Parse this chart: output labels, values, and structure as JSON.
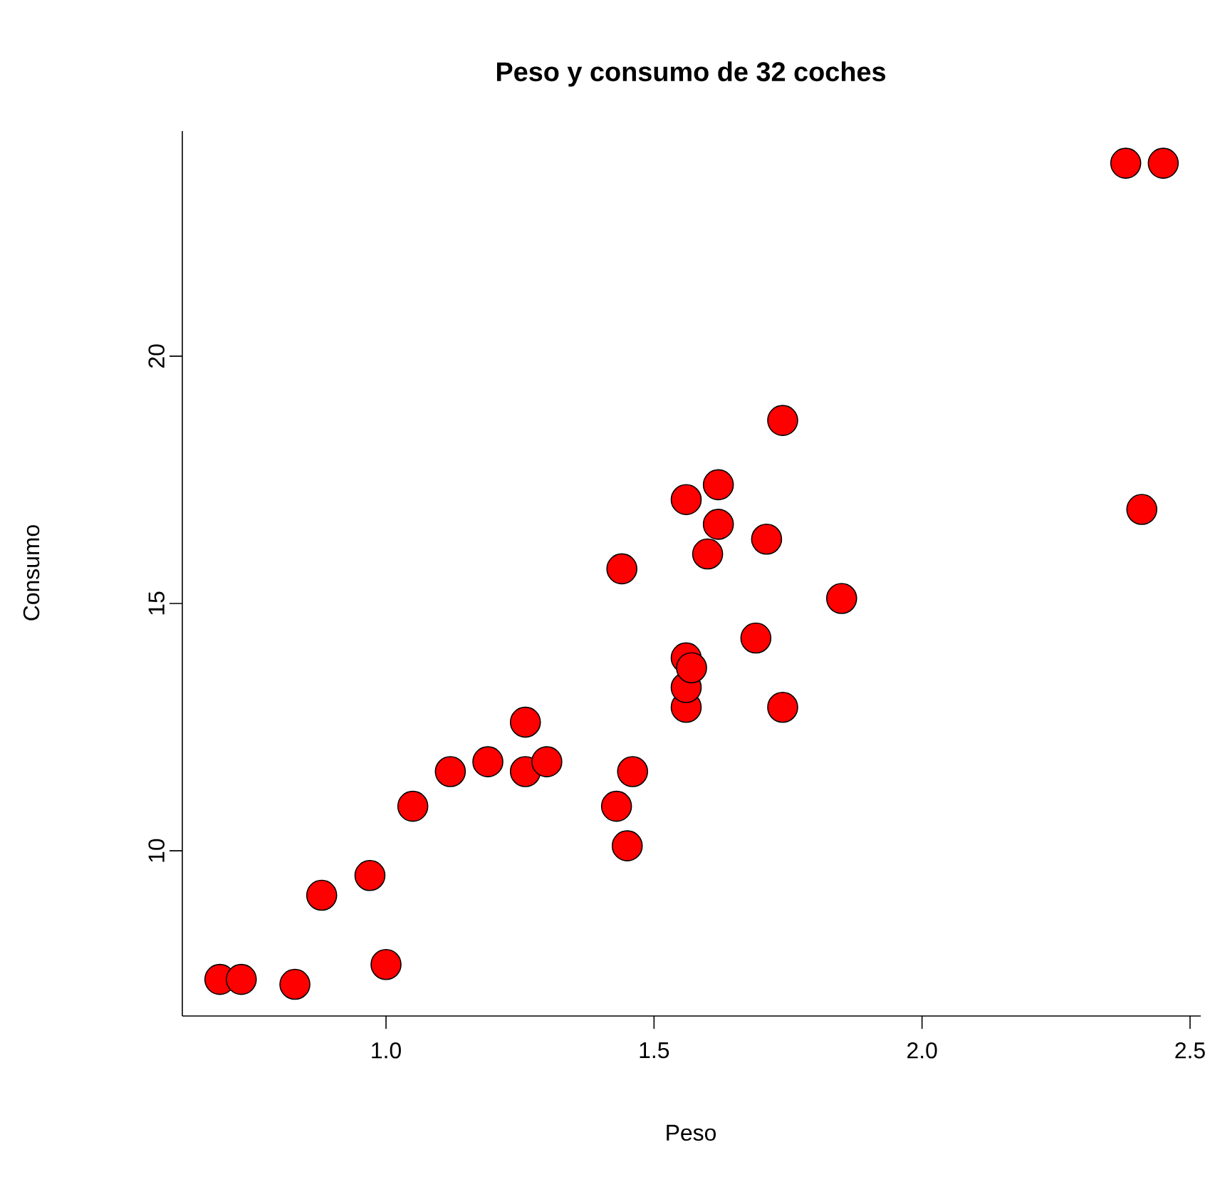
{
  "chart_data": {
    "type": "scatter",
    "title": "Peso y consumo de 32 coches",
    "xlabel": "Peso",
    "ylabel": "Consumo",
    "x": [
      0.69,
      0.73,
      0.83,
      0.88,
      0.97,
      1.0,
      1.05,
      1.12,
      1.19,
      1.26,
      1.26,
      1.3,
      1.43,
      1.45,
      1.46,
      1.44,
      1.56,
      1.56,
      1.56,
      1.57,
      1.62,
      1.62,
      1.6,
      1.56,
      1.71,
      1.69,
      1.74,
      1.74,
      1.85,
      2.38,
      2.45,
      2.41
    ],
    "values": [
      7.4,
      7.4,
      7.3,
      9.1,
      9.5,
      7.7,
      10.9,
      11.6,
      11.8,
      12.6,
      11.6,
      11.8,
      10.9,
      10.1,
      11.6,
      15.7,
      12.9,
      13.3,
      13.9,
      13.7,
      17.4,
      16.6,
      16.0,
      17.1,
      16.3,
      14.3,
      12.9,
      18.7,
      15.1,
      23.9,
      23.9,
      16.9
    ],
    "color": "#ff0000",
    "xlim": [
      0.62,
      2.52
    ],
    "ylim": [
      6.66,
      24.55
    ],
    "xticks": [
      {
        "value": 1.0,
        "label": "1.0"
      },
      {
        "value": 1.5,
        "label": "1.5"
      },
      {
        "value": 2.0,
        "label": "2.0"
      },
      {
        "value": 2.5,
        "label": "2.5"
      }
    ],
    "yticks": [
      10,
      15,
      20
    ]
  }
}
